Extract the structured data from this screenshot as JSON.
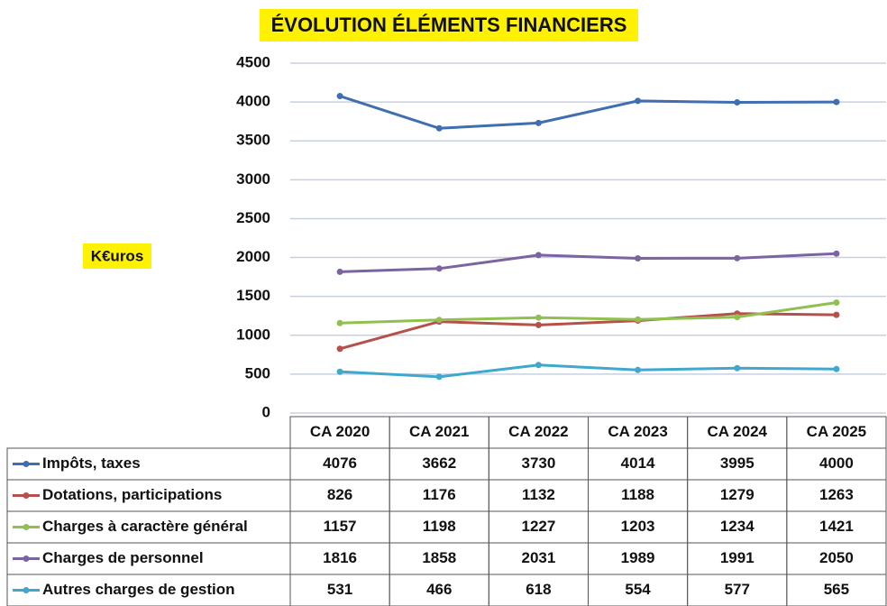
{
  "chart_data": {
    "type": "line",
    "title": "ÉVOLUTION ÉLÉMENTS FINANCIERS",
    "y_label": "K€uros",
    "categories": [
      "CA 2020",
      "CA 2021",
      "CA 2022",
      "CA 2023",
      "CA 2024",
      "CA 2025"
    ],
    "series": [
      {
        "name": "Impôts, taxes",
        "color": "#3f6fb0",
        "values": [
          4076,
          3662,
          3730,
          4014,
          3995,
          4000
        ]
      },
      {
        "name": "Dotations, participations",
        "color": "#b5504a",
        "values": [
          826,
          1176,
          1132,
          1188,
          1279,
          1263
        ]
      },
      {
        "name": "Charges à caractère général",
        "color": "#92c050",
        "values": [
          1157,
          1198,
          1227,
          1203,
          1234,
          1421
        ]
      },
      {
        "name": "Charges de personnel",
        "color": "#7b64a0",
        "values": [
          1816,
          1858,
          2031,
          1989,
          1991,
          2050
        ]
      },
      {
        "name": "Autres charges de gestion",
        "color": "#3fa8cc",
        "values": [
          531,
          466,
          618,
          554,
          577,
          565
        ]
      }
    ],
    "ylim": [
      0,
      4500
    ],
    "yticks": [
      0,
      500,
      1000,
      1500,
      2000,
      2500,
      3000,
      3500,
      4000,
      4500
    ],
    "grid": true
  }
}
